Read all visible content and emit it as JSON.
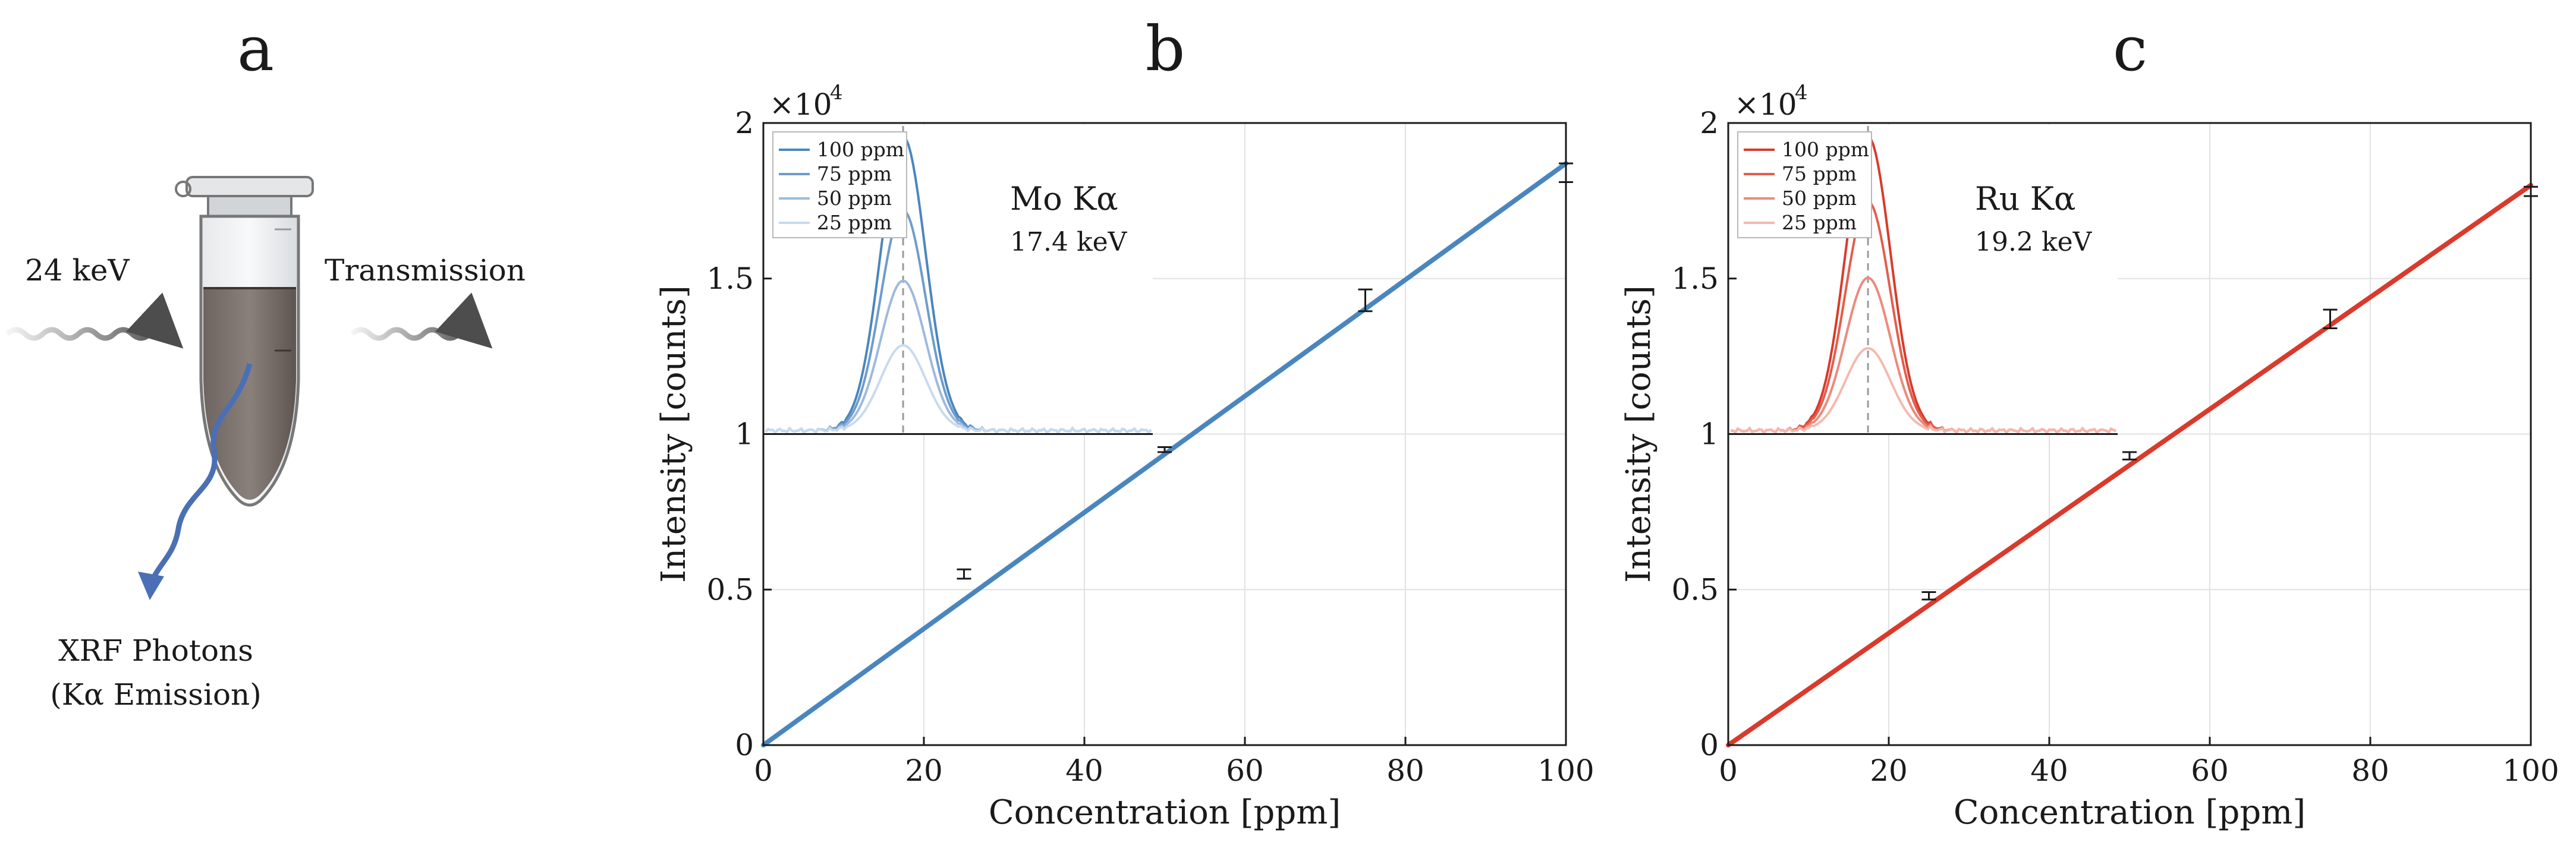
{
  "panels": {
    "a": {
      "label": "a",
      "beam_energy": "24 keV",
      "transmission": "Transmission",
      "xrf_line1": "XRF Photons",
      "xrf_line2": "(Kα Emission)"
    }
  },
  "chart_data": [
    {
      "type": "scatter",
      "panel_label": "b",
      "xlabel": "Concentration [ppm]",
      "ylabel": "Intensity [counts]",
      "x_exponent_label": "×10",
      "exponent": "4",
      "xlim": [
        0,
        100
      ],
      "ylim": [
        0,
        2
      ],
      "xticks": [
        0,
        20,
        40,
        60,
        80,
        100
      ],
      "xtick_labels": [
        "0",
        "20",
        "40",
        "60",
        "80",
        "100"
      ],
      "yticks": [
        0,
        0.5,
        1,
        1.5,
        2
      ],
      "ytick_labels": [
        "0",
        "0.5",
        "1",
        "1.5",
        "2"
      ],
      "grid": true,
      "color": "#4a86be",
      "fit_line": {
        "x": [
          0,
          100
        ],
        "y": [
          0,
          1.87
        ]
      },
      "points": [
        {
          "x": 25,
          "y": 0.55,
          "err": 0.015
        },
        {
          "x": 50,
          "y": 0.95,
          "err": 0.008
        },
        {
          "x": 75,
          "y": 1.43,
          "err": 0.035
        },
        {
          "x": 100,
          "y": 1.84,
          "err": 0.03
        }
      ],
      "inset": {
        "peak_name": "Mo Kα",
        "peak_energy": "17.4 keV",
        "legend": [
          {
            "label": "100 ppm",
            "color": "#4a86be",
            "amplitude": 1.0
          },
          {
            "label": "75 ppm",
            "color": "#6e9ccb",
            "amplitude": 0.75
          },
          {
            "label": "50 ppm",
            "color": "#9dbade",
            "amplitude": 0.51
          },
          {
            "label": "25 ppm",
            "color": "#c9daee",
            "amplitude": 0.29
          }
        ]
      }
    },
    {
      "type": "scatter",
      "panel_label": "c",
      "xlabel": "Concentration [ppm]",
      "ylabel": "Intensity [counts]",
      "x_exponent_label": "×10",
      "exponent": "4",
      "xlim": [
        0,
        100
      ],
      "ylim": [
        0,
        2
      ],
      "xticks": [
        0,
        20,
        40,
        60,
        80,
        100
      ],
      "xtick_labels": [
        "0",
        "20",
        "40",
        "60",
        "80",
        "100"
      ],
      "yticks": [
        0,
        0.5,
        1,
        1.5,
        2
      ],
      "ytick_labels": [
        "0",
        "0.5",
        "1",
        "1.5",
        "2"
      ],
      "grid": true,
      "color": "#d93a2b",
      "fit_line": {
        "x": [
          0,
          100
        ],
        "y": [
          0,
          1.8
        ]
      },
      "points": [
        {
          "x": 25,
          "y": 0.48,
          "err": 0.012
        },
        {
          "x": 50,
          "y": 0.93,
          "err": 0.012
        },
        {
          "x": 75,
          "y": 1.37,
          "err": 0.03
        },
        {
          "x": 100,
          "y": 1.78,
          "err": 0.015
        }
      ],
      "inset": {
        "peak_name": "Ru Kα",
        "peak_energy": "19.2 keV",
        "legend": [
          {
            "label": "100 ppm",
            "color": "#d93a2b",
            "amplitude": 1.0
          },
          {
            "label": "75 ppm",
            "color": "#e35d4c",
            "amplitude": 0.78
          },
          {
            "label": "50 ppm",
            "color": "#ec8a7c",
            "amplitude": 0.52
          },
          {
            "label": "25 ppm",
            "color": "#f4b9ae",
            "amplitude": 0.28
          }
        ]
      }
    }
  ]
}
